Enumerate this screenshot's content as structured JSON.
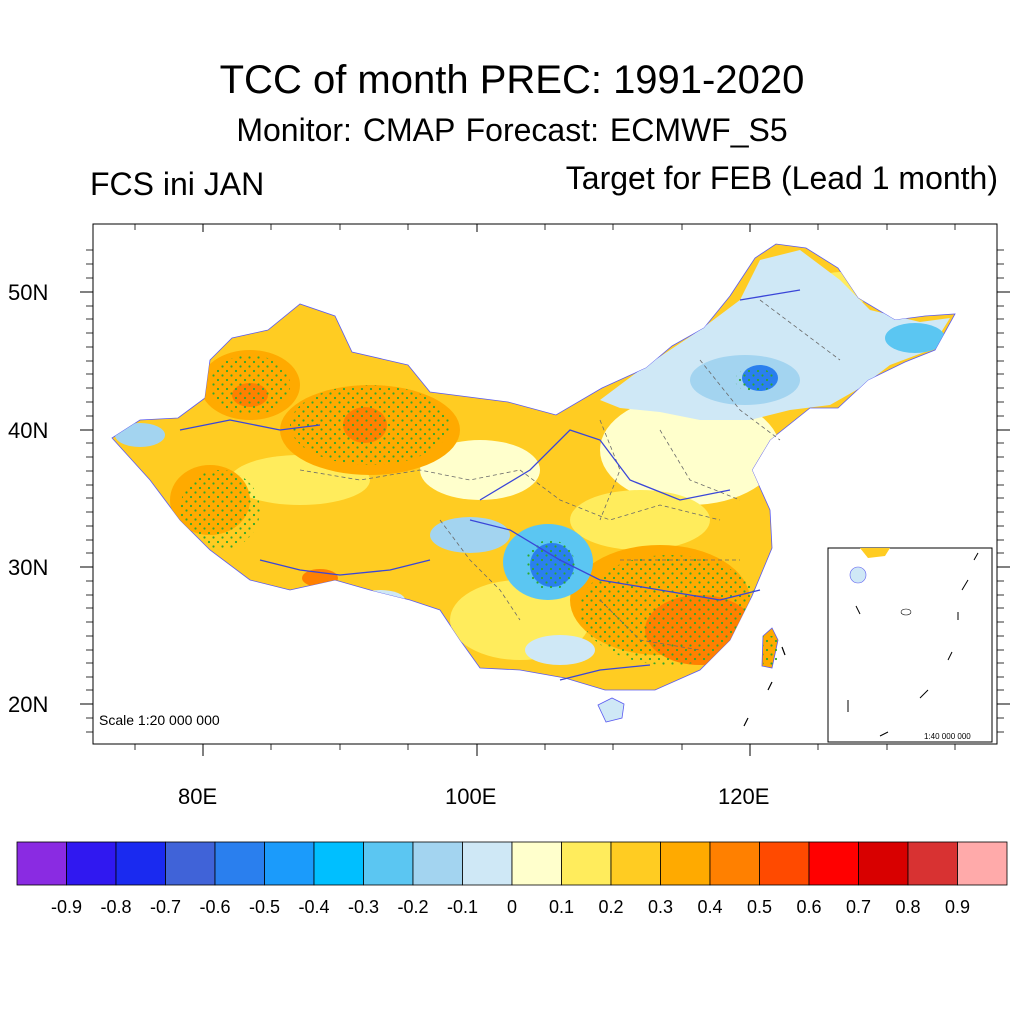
{
  "title": "TCC of month PREC: 1991-2020",
  "subtitle": "Monitor: CMAP   Forecast: ECMWF_S5",
  "left_label": "FCS ini JAN",
  "right_label": "Target for FEB (Lead 1 month)",
  "scale_label": "Scale 1:20 000 000",
  "inset_scale_label": "1:40 000 000",
  "lat_labels": [
    "50N",
    "40N",
    "30N",
    "20N"
  ],
  "lon_labels": [
    "80E",
    "100E",
    "120E"
  ],
  "colorbar": {
    "colors": [
      "#8a2be2",
      "#3018f0",
      "#1a2af0",
      "#4063d8",
      "#2a7fee",
      "#1b9bfb",
      "#00bfff",
      "#5bc6f2",
      "#a3d4f0",
      "#cfe8f6",
      "#ffffcc",
      "#ffec5c",
      "#ffcc22",
      "#ffaa00",
      "#ff8000",
      "#ff4a00",
      "#ff0000",
      "#d80000",
      "#d83232",
      "#ffaaaa"
    ],
    "labels": [
      "-0.9",
      "-0.8",
      "-0.7",
      "-0.6",
      "-0.5",
      "-0.4",
      "-0.3",
      "-0.2",
      "-0.1",
      "0",
      "0.1",
      "0.2",
      "0.3",
      "0.4",
      "0.5",
      "0.6",
      "0.7",
      "0.8",
      "0.9"
    ]
  },
  "map": {
    "lat_ticks": [
      50,
      40,
      30,
      20
    ],
    "lon_ticks": [
      80,
      100,
      120
    ],
    "colors": {
      "china_fill": "#ffcc22",
      "river": "#3a46d8",
      "border": "#6a6a6a",
      "stipple": "#2ea82e"
    }
  }
}
